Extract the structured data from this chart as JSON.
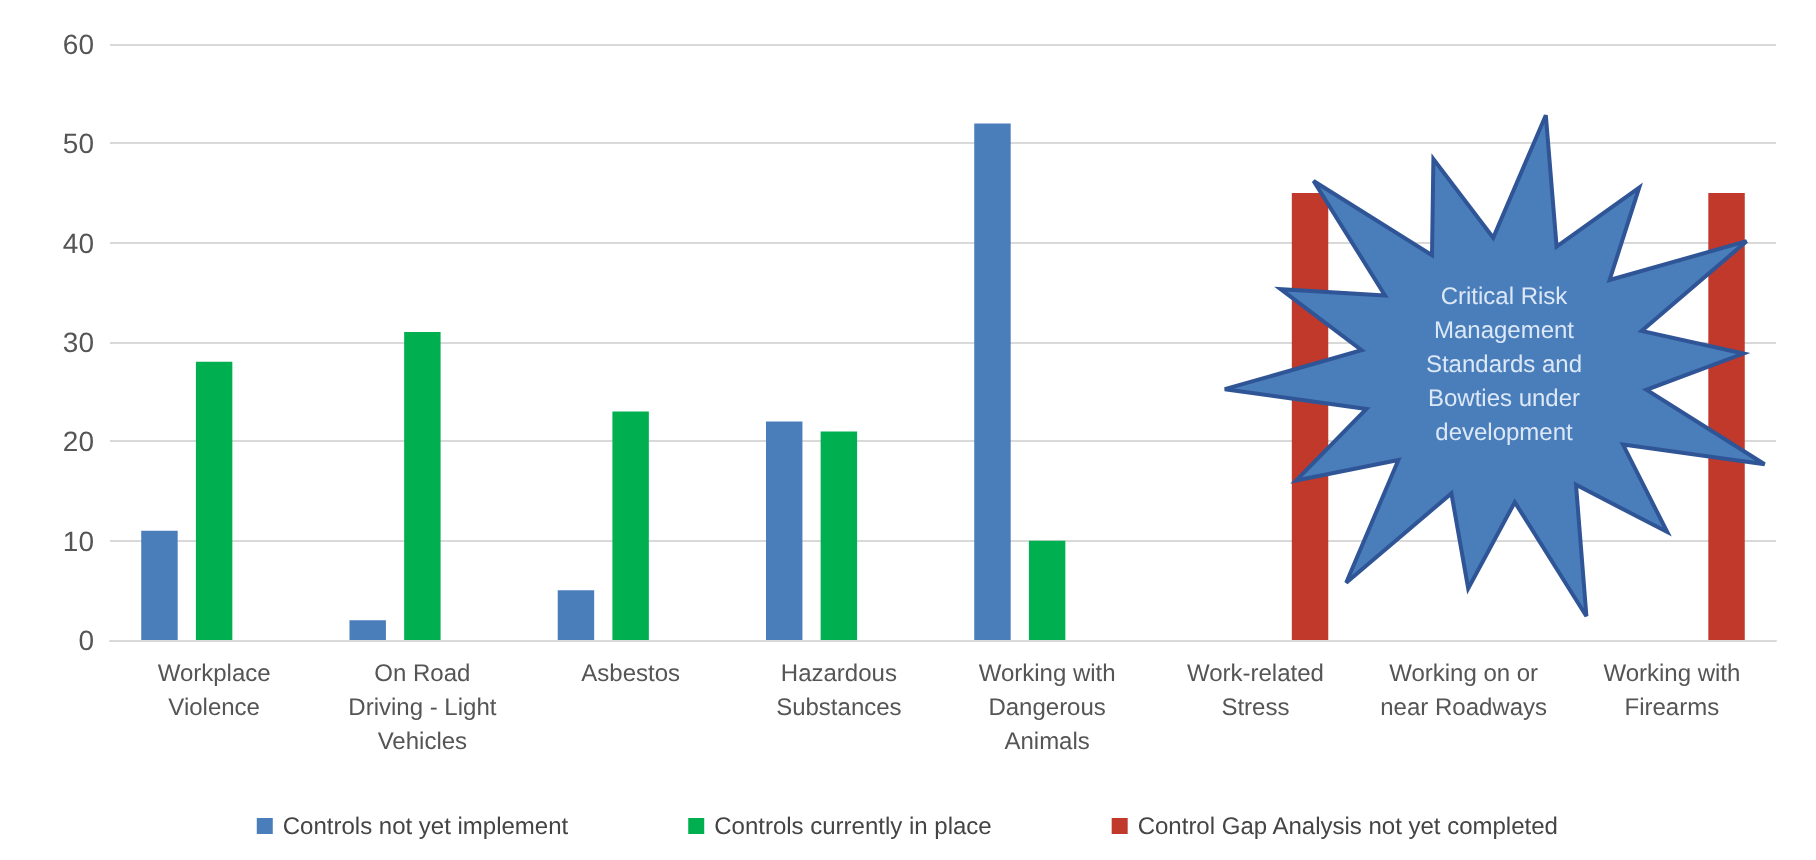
{
  "chart_data": {
    "type": "bar",
    "categories": [
      "Workplace\nViolence",
      "On Road\nDriving - Light\nVehicles",
      "Asbestos",
      "Hazardous\nSubstances",
      "Working with\nDangerous\nAnimals",
      "Work-related\nStress",
      "Working on or\nnear Roadways",
      "Working with\nFirearms"
    ],
    "series": [
      {
        "name": "Controls not yet implement",
        "color": "#4a7ebb",
        "values": [
          11,
          2,
          5,
          22,
          52,
          null,
          null,
          null
        ]
      },
      {
        "name": "Controls currently in place",
        "color": "#00b050",
        "values": [
          28,
          31,
          23,
          21,
          10,
          null,
          null,
          null
        ]
      },
      {
        "name": "Control Gap Analysis not yet completed",
        "color": "#c0392b",
        "values": [
          null,
          null,
          null,
          null,
          null,
          45,
          null,
          45
        ]
      }
    ],
    "ylim": [
      0,
      60
    ],
    "yticks": [
      0,
      10,
      20,
      30,
      40,
      50,
      60
    ],
    "grid": "y",
    "legend": "bottom",
    "annotations": [
      "Critical Risk Management Standards and Bowties under development"
    ]
  }
}
